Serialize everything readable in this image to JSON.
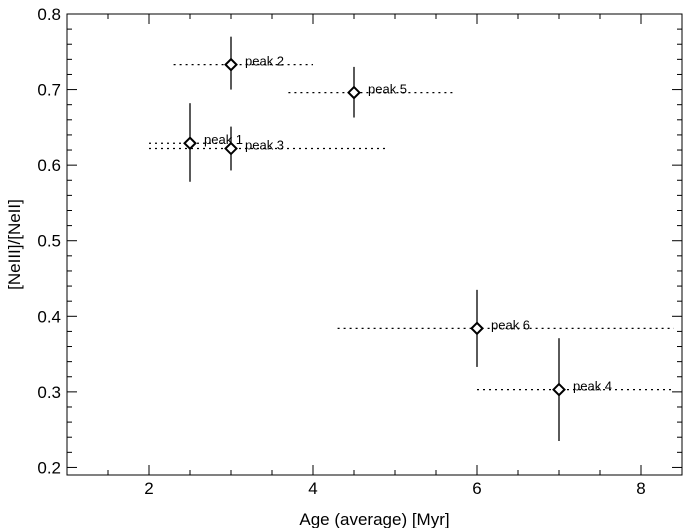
{
  "chart_data": {
    "type": "scatter",
    "xlabel": "Age (average)  [Myr]",
    "ylabel": "[NeIII]/[NeII]",
    "xlim": [
      1.0,
      8.5
    ],
    "ylim": [
      0.19,
      0.8
    ],
    "x_ticks": [
      2,
      4,
      6,
      8
    ],
    "x_tick_labels": [
      "2",
      "4",
      "6",
      "8"
    ],
    "y_ticks": [
      0.2,
      0.3,
      0.4,
      0.5,
      0.6,
      0.7,
      0.8
    ],
    "y_tick_labels": [
      "0.2",
      "0.3",
      "0.4",
      "0.5",
      "0.6",
      "0.7",
      "0.8"
    ],
    "grid": false,
    "marker": "diamond",
    "points": [
      {
        "label": "peak 2",
        "x": 3.0,
        "y": 0.733,
        "x_range": [
          2.3,
          4.0
        ],
        "y_range": [
          0.7,
          0.77
        ]
      },
      {
        "label": "peak 5",
        "x": 4.5,
        "y": 0.696,
        "x_range": [
          3.7,
          5.7
        ],
        "y_range": [
          0.663,
          0.73
        ]
      },
      {
        "label": "peak 1",
        "x": 2.5,
        "y": 0.629,
        "x_range": [
          2.0,
          2.9
        ],
        "y_range": [
          0.578,
          0.682
        ]
      },
      {
        "label": "peak 3",
        "x": 3.0,
        "y": 0.622,
        "x_range": [
          2.0,
          4.9
        ],
        "y_range": [
          0.593,
          0.651
        ]
      },
      {
        "label": "peak 6",
        "x": 6.0,
        "y": 0.384,
        "x_range": [
          4.3,
          8.4
        ],
        "y_range": [
          0.333,
          0.435
        ]
      },
      {
        "label": "peak 4",
        "x": 7.0,
        "y": 0.303,
        "x_range": [
          6.0,
          8.4
        ],
        "y_range": [
          0.235,
          0.371
        ]
      }
    ]
  }
}
